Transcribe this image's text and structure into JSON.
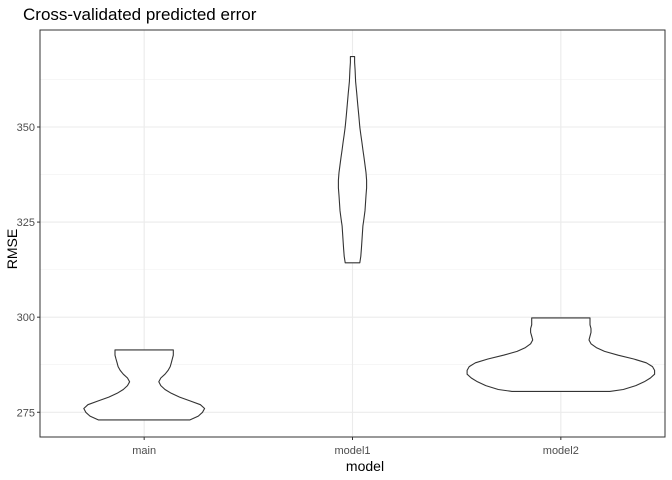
{
  "chart_data": {
    "type": "violin",
    "title": "Cross-validated predicted error",
    "xlabel": "model",
    "ylabel": "RMSE",
    "categories": [
      "main",
      "model1",
      "model2"
    ],
    "ylim": [
      268.5,
      375.5
    ],
    "yticks": [
      275,
      300,
      325,
      350
    ],
    "grid": true,
    "series": [
      {
        "category": "main",
        "profile": [
          [
            273.0,
            0.44
          ],
          [
            274.0,
            0.52
          ],
          [
            275.0,
            0.56
          ],
          [
            276.0,
            0.58
          ],
          [
            277.0,
            0.54
          ],
          [
            278.0,
            0.44
          ],
          [
            279.0,
            0.34
          ],
          [
            280.0,
            0.26
          ],
          [
            281.0,
            0.2
          ],
          [
            282.0,
            0.16
          ],
          [
            283.0,
            0.14
          ],
          [
            284.0,
            0.16
          ],
          [
            285.0,
            0.2
          ],
          [
            286.0,
            0.23
          ],
          [
            287.0,
            0.25
          ],
          [
            288.0,
            0.26
          ],
          [
            289.0,
            0.27
          ],
          [
            290.0,
            0.28
          ],
          [
            291.4,
            0.28
          ]
        ]
      },
      {
        "category": "model1",
        "profile": [
          [
            314.3,
            0.07
          ],
          [
            316.0,
            0.08
          ],
          [
            318.0,
            0.085
          ],
          [
            320.0,
            0.09
          ],
          [
            322.0,
            0.095
          ],
          [
            324.0,
            0.1
          ],
          [
            326.0,
            0.11
          ],
          [
            328.0,
            0.12
          ],
          [
            330.0,
            0.125
          ],
          [
            332.0,
            0.13
          ],
          [
            334.0,
            0.135
          ],
          [
            336.0,
            0.135
          ],
          [
            338.0,
            0.13
          ],
          [
            340.0,
            0.12
          ],
          [
            342.0,
            0.11
          ],
          [
            344.0,
            0.1
          ],
          [
            346.0,
            0.09
          ],
          [
            348.0,
            0.08
          ],
          [
            350.0,
            0.07
          ],
          [
            353.0,
            0.06
          ],
          [
            356.0,
            0.05
          ],
          [
            359.0,
            0.04
          ],
          [
            362.0,
            0.03
          ],
          [
            365.0,
            0.025
          ],
          [
            367.0,
            0.02
          ],
          [
            368.5,
            0.02
          ]
        ]
      },
      {
        "category": "model2",
        "profile": [
          [
            280.5,
            0.47
          ],
          [
            281.0,
            0.6
          ],
          [
            282.0,
            0.72
          ],
          [
            283.0,
            0.8
          ],
          [
            284.0,
            0.86
          ],
          [
            285.0,
            0.9
          ],
          [
            286.0,
            0.9
          ],
          [
            287.0,
            0.88
          ],
          [
            288.0,
            0.82
          ],
          [
            289.0,
            0.7
          ],
          [
            290.0,
            0.55
          ],
          [
            291.0,
            0.42
          ],
          [
            292.0,
            0.34
          ],
          [
            293.0,
            0.29
          ],
          [
            294.0,
            0.27
          ],
          [
            295.0,
            0.28
          ],
          [
            296.0,
            0.29
          ],
          [
            297.0,
            0.29
          ],
          [
            298.0,
            0.28
          ],
          [
            299.0,
            0.28
          ],
          [
            299.8,
            0.28
          ]
        ]
      }
    ]
  }
}
